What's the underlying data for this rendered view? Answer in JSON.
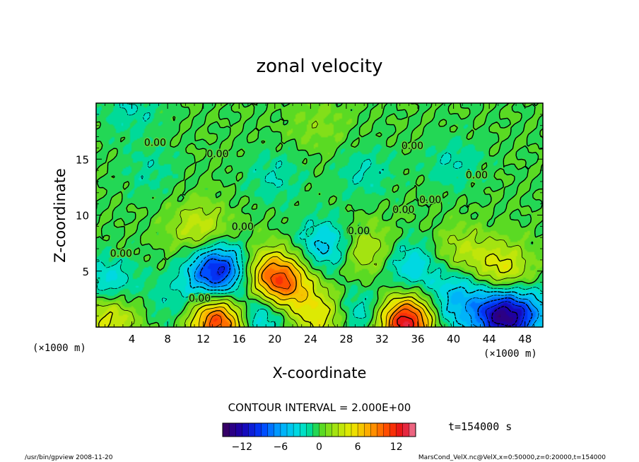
{
  "chart_data": {
    "type": "heatmap",
    "title": "zonal velocity",
    "xlabel": "X-coordinate",
    "ylabel": "Z-coordinate",
    "x_unit_left": "(×1000 m)",
    "x_unit_right": "(×1000 m)",
    "xlim": [
      0,
      50
    ],
    "ylim": [
      0,
      20
    ],
    "x_ticks": [
      "4",
      "8",
      "12",
      "16",
      "20",
      "24",
      "28",
      "32",
      "36",
      "40",
      "44",
      "48"
    ],
    "x_tick_values": [
      4,
      8,
      12,
      16,
      20,
      24,
      28,
      32,
      36,
      40,
      44,
      48
    ],
    "y_ticks": [
      "5",
      "10",
      "15"
    ],
    "y_tick_values": [
      5,
      10,
      15
    ],
    "contour_interval_text": "CONTOUR INTERVAL = 2.000E+00",
    "time_label": "t=154000 s",
    "colorbar": {
      "min": -15,
      "max": 15,
      "step": 1,
      "tick_labels": [
        "−12",
        "−6",
        "0",
        "6",
        "12"
      ],
      "tick_values": [
        -12,
        -6,
        0,
        6,
        12
      ]
    },
    "contour_labels": [
      {
        "text": "0.00",
        "x": 6.6,
        "z": 16.5
      },
      {
        "text": "0.00",
        "x": 13.6,
        "z": 15.5
      },
      {
        "text": "0.00",
        "x": 35.4,
        "z": 16.2
      },
      {
        "text": "0.00",
        "x": 42.6,
        "z": 13.6
      },
      {
        "text": "0.00",
        "x": 37.4,
        "z": 11.4
      },
      {
        "text": "0.00",
        "x": 34.4,
        "z": 10.5
      },
      {
        "text": "0.00",
        "x": 16.4,
        "z": 9.0
      },
      {
        "text": "0.00",
        "x": 29.4,
        "z": 8.6
      },
      {
        "text": "0.00",
        "x": 2.8,
        "z": 6.6
      },
      {
        "text": "0.00",
        "x": 11.6,
        "z": 2.6
      }
    ],
    "features": [
      {
        "x": 13.6,
        "z": 5.0,
        "value": -11
      },
      {
        "x": 19.4,
        "z": 4.6,
        "value": 6
      },
      {
        "x": 21.0,
        "z": 3.8,
        "value": 7
      },
      {
        "x": 25.8,
        "z": 7.2,
        "value": -5
      },
      {
        "x": 30.0,
        "z": 6.8,
        "value": 4
      },
      {
        "x": 35.2,
        "z": 5.4,
        "value": -4
      },
      {
        "x": 40.8,
        "z": 6.6,
        "value": 3
      },
      {
        "x": 45.4,
        "z": 5.0,
        "value": 5
      },
      {
        "x": 13.8,
        "z": 0.5,
        "value": 12
      },
      {
        "x": 34.8,
        "z": 0.4,
        "value": 14
      },
      {
        "x": 25.2,
        "z": 1.0,
        "value": 5
      },
      {
        "x": 45.6,
        "z": 1.0,
        "value": -13
      },
      {
        "x": 18.0,
        "z": 1.2,
        "value": -6
      },
      {
        "x": 1.4,
        "z": 1.0,
        "value": 5
      },
      {
        "x": 1.4,
        "z": 3.8,
        "value": -4
      },
      {
        "x": 29.6,
        "z": 1.2,
        "value": -4
      },
      {
        "x": 11.6,
        "z": 8.7,
        "value": 4
      },
      {
        "x": 40.8,
        "z": 3.2,
        "value": -4
      },
      {
        "x": 9.0,
        "z": 2.2,
        "value": -2
      },
      {
        "x": 39.0,
        "z": 0.8,
        "value": -3
      },
      {
        "x": 49.4,
        "z": 1.2,
        "value": -3
      },
      {
        "x": 20.0,
        "z": 13.5,
        "value": -2
      },
      {
        "x": 30.0,
        "z": 13.8,
        "value": -2
      },
      {
        "x": 6.0,
        "z": 14.0,
        "value": -1.5
      },
      {
        "x": 40.0,
        "z": 14.6,
        "value": -2
      },
      {
        "x": 25.0,
        "z": 18.0,
        "value": 1.5
      },
      {
        "x": 4.0,
        "z": 19.4,
        "value": -2
      }
    ]
  },
  "footer": {
    "left": "/usr/bin/gpview  2008-11-20",
    "right": "MarsCond_VelX.nc@VelX,x=0:50000,z=0:20000,t=154000"
  }
}
